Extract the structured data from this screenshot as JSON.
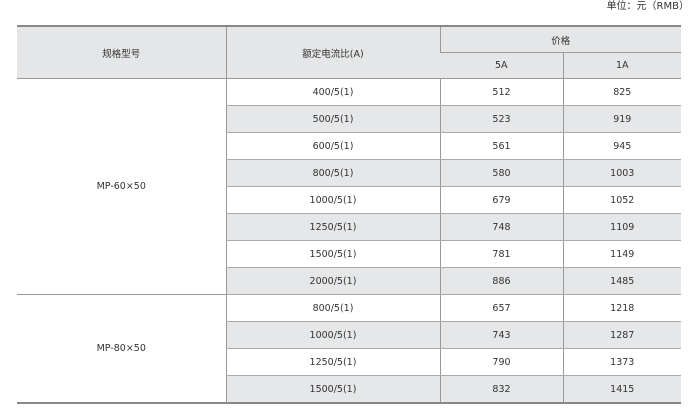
{
  "unit_label": "单位：元（RMB）",
  "headers": {
    "model": "规格型号",
    "ratio": "额定电流比(A)",
    "price": "价格",
    "price_5a": "5A",
    "price_1a": "1A"
  },
  "groups": [
    {
      "model": "MP-60×50",
      "rows": [
        {
          "ratio": "400/5(1)",
          "p5": "512",
          "p1": "825"
        },
        {
          "ratio": "500/5(1)",
          "p5": "523",
          "p1": "919"
        },
        {
          "ratio": "600/5(1)",
          "p5": "561",
          "p1": "945"
        },
        {
          "ratio": "800/5(1)",
          "p5": "580",
          "p1": "1003"
        },
        {
          "ratio": "1000/5(1)",
          "p5": "679",
          "p1": "1052"
        },
        {
          "ratio": "1250/5(1)",
          "p5": "748",
          "p1": "1109"
        },
        {
          "ratio": "1500/5(1)",
          "p5": "781",
          "p1": "1149"
        },
        {
          "ratio": "2000/5(1)",
          "p5": "886",
          "p1": "1485"
        }
      ]
    },
    {
      "model": "MP-80×50",
      "rows": [
        {
          "ratio": "800/5(1)",
          "p5": "657",
          "p1": "1218"
        },
        {
          "ratio": "1000/5(1)",
          "p5": "743",
          "p1": "1287"
        },
        {
          "ratio": "1250/5(1)",
          "p5": "790",
          "p1": "1373"
        },
        {
          "ratio": "1500/5(1)",
          "p5": "832",
          "p1": "1415"
        }
      ]
    }
  ]
}
